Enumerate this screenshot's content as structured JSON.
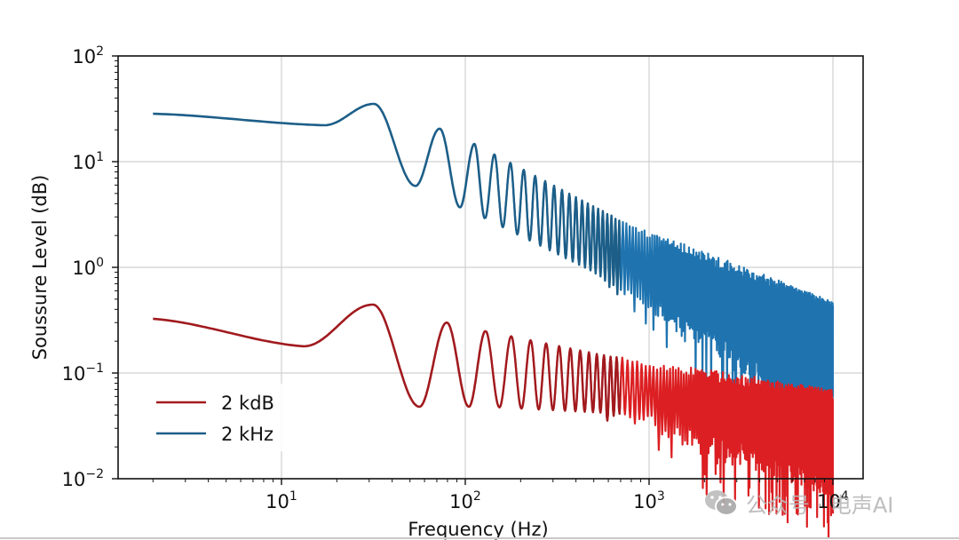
{
  "chart_data": {
    "type": "line",
    "title": "",
    "xlabel": "Frequency (Hz)",
    "ylabel": "Soussure Level (dB)",
    "xscale": "log",
    "yscale": "log",
    "xlim": [
      1.3,
      14000
    ],
    "ylim": [
      0.01,
      100
    ],
    "grid": true,
    "legend_position": "lower-left",
    "xticks": [
      {
        "base": "10",
        "exp": "1",
        "value": 10
      },
      {
        "base": "10",
        "exp": "2",
        "value": 100
      },
      {
        "base": "10",
        "exp": "3",
        "value": 1000
      },
      {
        "base": "10",
        "exp": "4",
        "value": 10000
      }
    ],
    "yticks": [
      {
        "base": "10",
        "exp": "2",
        "value": 100
      },
      {
        "base": "10",
        "exp": "1",
        "value": 10
      },
      {
        "base": "10",
        "exp": "0",
        "value": 1
      },
      {
        "base": "10",
        "exp": "−1",
        "value": 0.1
      },
      {
        "base": "10",
        "exp": "−2",
        "value": 0.01
      }
    ],
    "series": [
      {
        "name": "2 kdB",
        "color": "#a11a1e",
        "dense_color": "#dc1f22",
        "x_range": [
          2,
          10000
        ],
        "key_points": [
          {
            "x": 2,
            "y": 0.326
          },
          {
            "x": 13.2,
            "y": 0.179
          },
          {
            "x": 31.4,
            "y": 0.444
          },
          {
            "x": 56.3,
            "y": 0.048
          },
          {
            "x": 79.3,
            "y": 0.3
          },
          {
            "x": 104.6,
            "y": 0.048
          },
          {
            "x": 129,
            "y": 0.25
          }
        ],
        "upper_envelope": [
          {
            "x": 129,
            "y": 0.25
          },
          {
            "x": 1000,
            "y": 0.12
          },
          {
            "x": 10000,
            "y": 0.06
          }
        ],
        "lower_envelope": [
          {
            "x": 129,
            "y": 0.048
          },
          {
            "x": 1000,
            "y": 0.04
          },
          {
            "x": 10000,
            "y": 0.012
          }
        ]
      },
      {
        "name": "2 kHz",
        "color": "#1c5e88",
        "dense_color": "#1f74b0",
        "x_range": [
          2,
          10000
        ],
        "key_points": [
          {
            "x": 2,
            "y": 28.4
          },
          {
            "x": 17.1,
            "y": 22.1
          },
          {
            "x": 31.8,
            "y": 35.2
          },
          {
            "x": 53.6,
            "y": 5.9
          },
          {
            "x": 72.5,
            "y": 20.5
          },
          {
            "x": 93.6,
            "y": 3.7
          },
          {
            "x": 112,
            "y": 14.7
          },
          {
            "x": 128,
            "y": 2.9
          }
        ],
        "upper_envelope": [
          {
            "x": 112,
            "y": 14.7
          },
          {
            "x": 1000,
            "y": 2.0
          },
          {
            "x": 10000,
            "y": 0.41
          }
        ],
        "lower_envelope": [
          {
            "x": 128,
            "y": 2.9
          },
          {
            "x": 1000,
            "y": 0.5
          },
          {
            "x": 10000,
            "y": 0.06
          }
        ]
      }
    ]
  },
  "watermark": {
    "icon": "wechat-icon",
    "text": "公众号 · 电声AI"
  }
}
